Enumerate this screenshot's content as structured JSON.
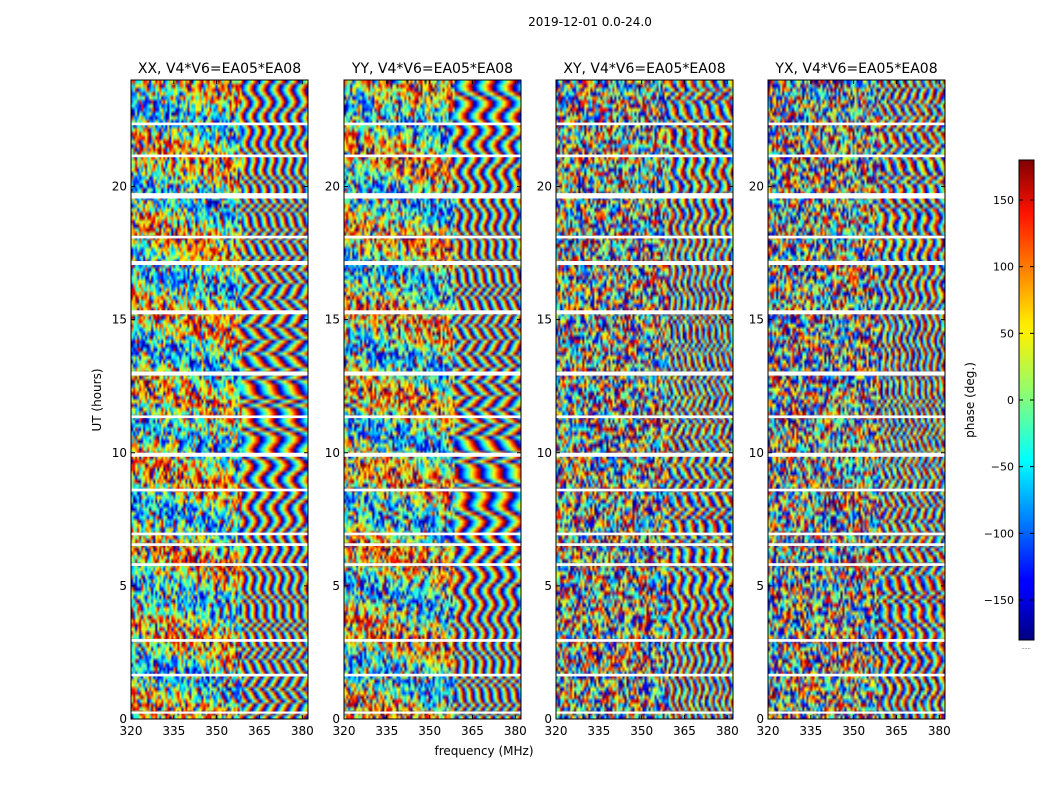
{
  "figure": {
    "suptitle": "2019-12-01 0.0-24.0",
    "xlabel": "frequency (MHz)",
    "ylabel": "UT (hours)",
    "colorbar_label": "phase (deg.)",
    "colorbar_footer": "......"
  },
  "chart_data": {
    "type": "heatmap",
    "colormap": "jet",
    "xlim": [
      320,
      382
    ],
    "ylim": [
      0,
      24
    ],
    "xticks": [
      320,
      335,
      350,
      365,
      380
    ],
    "yticks": [
      0,
      5,
      10,
      15,
      20
    ],
    "clim": [
      -180,
      180
    ],
    "colorbar_ticks": [
      150,
      100,
      50,
      0,
      -50,
      -100,
      -150
    ],
    "colorbar_tick_labels": [
      "150",
      "100",
      "50",
      "0",
      "−50",
      "−100",
      "−150"
    ],
    "panels": [
      {
        "title": "XX, V4*V6=EA05*EA08",
        "pol": "XX",
        "baseline": "V4*V6=EA05*EA08"
      },
      {
        "title": "YY, V4*V6=EA05*EA08",
        "pol": "YY",
        "baseline": "V4*V6=EA05*EA08"
      },
      {
        "title": "XY, V4*V6=EA05*EA08",
        "pol": "XY",
        "baseline": "V4*V6=EA05*EA08"
      },
      {
        "title": "YX, V4*V6=EA05*EA08",
        "pol": "YX",
        "baseline": "V4*V6=EA05*EA08"
      }
    ],
    "gap_bands_hours": [
      [
        19.55,
        19.75
      ],
      [
        17.05,
        17.2
      ],
      [
        15.2,
        15.35
      ],
      [
        12.9,
        13.05
      ],
      [
        9.85,
        10.0
      ],
      [
        6.9,
        7.0
      ],
      [
        6.5,
        6.6
      ],
      [
        5.75,
        5.85
      ],
      [
        2.9,
        3.0
      ],
      [
        1.6,
        1.7
      ],
      [
        0.2,
        0.28
      ],
      [
        22.3,
        22.4
      ],
      [
        21.1,
        21.2
      ],
      [
        18.05,
        18.15
      ],
      [
        11.3,
        11.4
      ],
      [
        8.55,
        8.65
      ]
    ]
  }
}
